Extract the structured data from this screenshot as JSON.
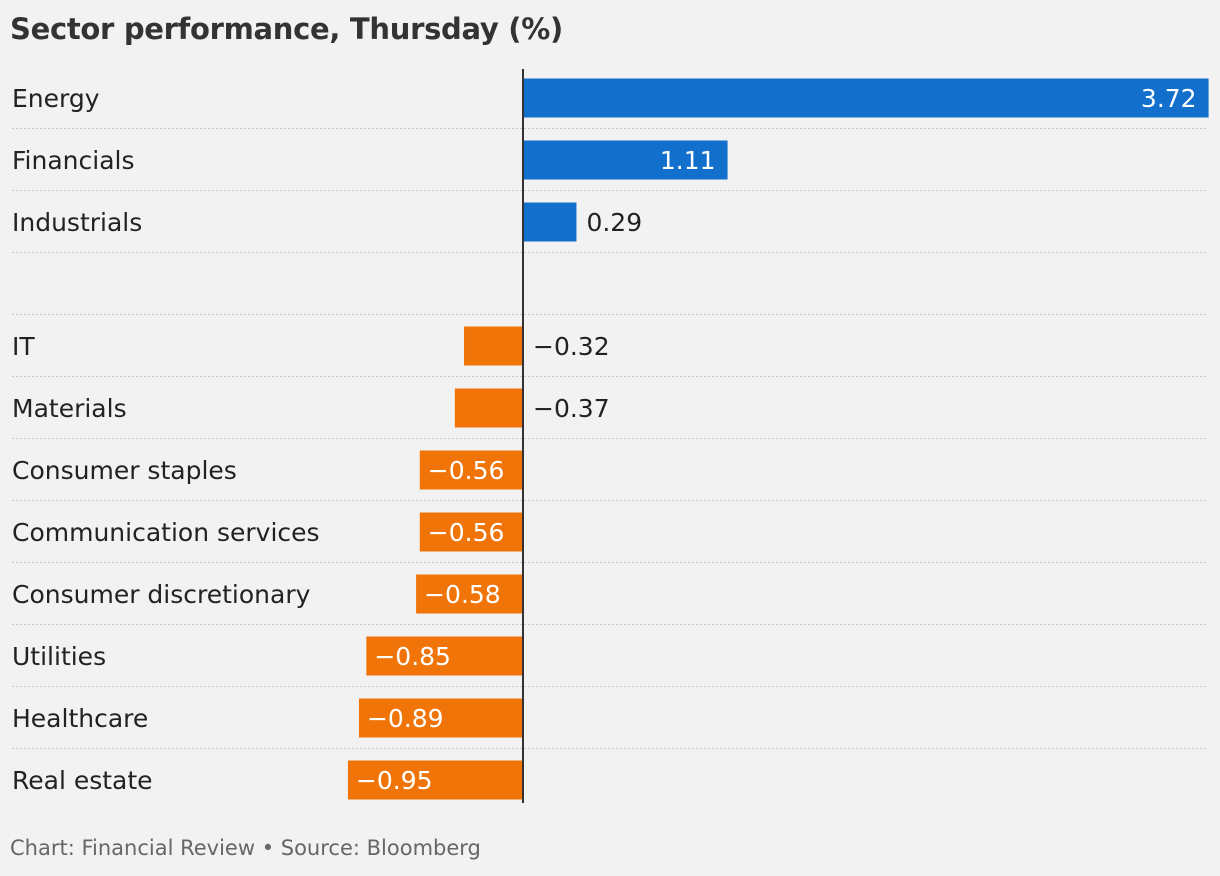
{
  "title": "Sector performance, Thursday (%)",
  "footer": {
    "credit": "Chart: Financial Review • Source: Bloomberg"
  },
  "colors": {
    "positive": "#1270cc",
    "negative": "#f07408",
    "background": "#f2f2f2",
    "axis": "#333333",
    "gridline": "#c8c8c8"
  },
  "chart_data": {
    "type": "bar",
    "orientation": "horizontal",
    "title": "Sector performance, Thursday (%)",
    "xlim": [
      -1.0,
      3.72
    ],
    "categories": [
      "Energy",
      "Financials",
      "Industrials",
      "",
      "IT",
      "Materials",
      "Consumer staples",
      "Communication services",
      "Consumer discretionary",
      "Utilities",
      "Healthcare",
      "Real estate"
    ],
    "values": [
      3.72,
      1.11,
      0.29,
      null,
      -0.32,
      -0.37,
      -0.56,
      -0.56,
      -0.58,
      -0.85,
      -0.89,
      -0.95
    ],
    "value_labels": [
      "3.72",
      "1.11",
      "0.29",
      "",
      "−0.32",
      "−0.37",
      "−0.56",
      "−0.56",
      "−0.58",
      "−0.85",
      "−0.89",
      "−0.95"
    ],
    "grid": false,
    "legend": "none"
  }
}
